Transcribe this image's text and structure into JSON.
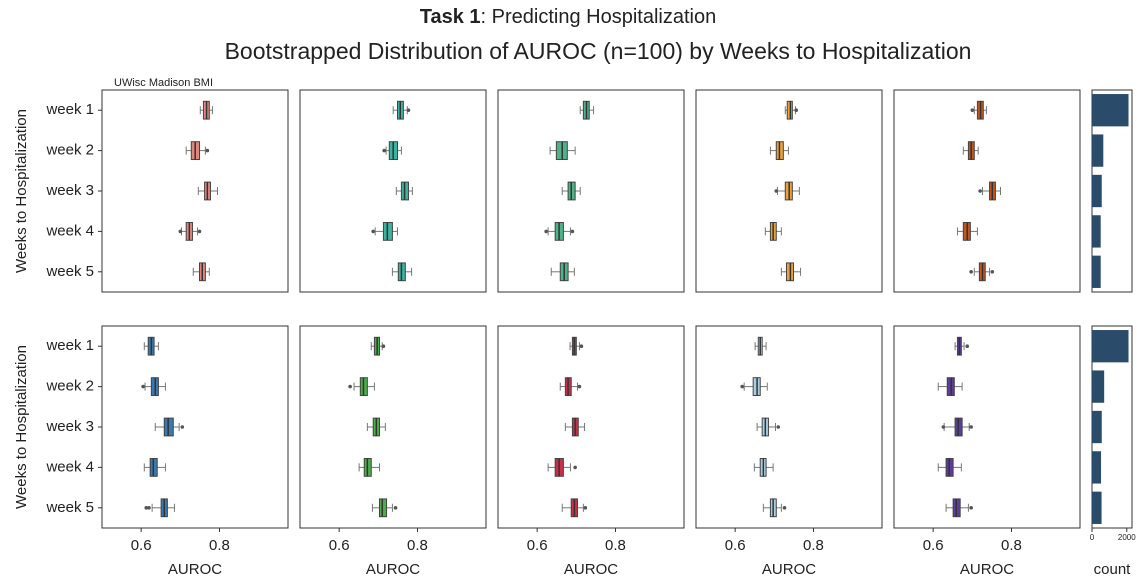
{
  "title": [
    "Task 1",
    ": Predicting Hospitalization"
  ],
  "subtitle": "Bootstrapped Distribution of AUROC (n=100) by Weeks to Hospitalization",
  "chart_data": [
    {
      "type": "box",
      "annotation": "UWisc Madison BMI",
      "ylabel": "Weeks to Hospitalization",
      "categories": [
        "week 1",
        "week 2",
        "week 3",
        "week 4",
        "week 5"
      ],
      "xlim": [
        0.5,
        0.975
      ],
      "color": "#e2857d",
      "boxes": [
        {
          "whislo": 0.751,
          "q1": 0.759,
          "med": 0.767,
          "q3": 0.774,
          "whishi": 0.782
        },
        {
          "whislo": 0.715,
          "q1": 0.728,
          "med": 0.738,
          "q3": 0.749,
          "whishi": 0.764,
          "fliers": [
            0.769
          ]
        },
        {
          "whislo": 0.746,
          "q1": 0.762,
          "med": 0.769,
          "q3": 0.777,
          "whishi": 0.795
        },
        {
          "whislo": 0.703,
          "q1": 0.715,
          "med": 0.723,
          "q3": 0.731,
          "whishi": 0.744,
          "fliers": [
            0.7,
            0.749
          ]
        },
        {
          "whislo": 0.733,
          "q1": 0.749,
          "med": 0.756,
          "q3": 0.764,
          "whishi": 0.774
        }
      ]
    },
    {
      "type": "box",
      "categories": [
        null,
        null,
        null,
        null,
        null
      ],
      "xlim": [
        0.5,
        0.975
      ],
      "color": "#3cb3a0",
      "boxes": [
        {
          "whislo": 0.738,
          "q1": 0.749,
          "med": 0.756,
          "q3": 0.764,
          "whishi": 0.774,
          "fliers": [
            0.777
          ]
        },
        {
          "whislo": 0.72,
          "q1": 0.728,
          "med": 0.738,
          "q3": 0.749,
          "whishi": 0.759,
          "fliers": [
            0.715
          ]
        },
        {
          "whislo": 0.746,
          "q1": 0.759,
          "med": 0.767,
          "q3": 0.777,
          "whishi": 0.787
        },
        {
          "whislo": 0.692,
          "q1": 0.713,
          "med": 0.723,
          "q3": 0.736,
          "whishi": 0.749,
          "fliers": [
            0.687
          ]
        },
        {
          "whislo": 0.736,
          "q1": 0.751,
          "med": 0.759,
          "q3": 0.769,
          "whishi": 0.785
        }
      ]
    },
    {
      "type": "box",
      "categories": [
        null,
        null,
        null,
        null,
        null
      ],
      "xlim": [
        0.5,
        0.975
      ],
      "color": "#4db38a",
      "boxes": [
        {
          "whislo": 0.71,
          "q1": 0.718,
          "med": 0.726,
          "q3": 0.733,
          "whishi": 0.744
        },
        {
          "whislo": 0.633,
          "q1": 0.649,
          "med": 0.664,
          "q3": 0.677,
          "whishi": 0.697
        },
        {
          "whislo": 0.664,
          "q1": 0.679,
          "med": 0.687,
          "q3": 0.697,
          "whishi": 0.71
        },
        {
          "whislo": 0.628,
          "q1": 0.646,
          "med": 0.656,
          "q3": 0.667,
          "whishi": 0.685,
          "fliers": [
            0.623,
            0.69
          ]
        },
        {
          "whislo": 0.636,
          "q1": 0.659,
          "med": 0.669,
          "q3": 0.679,
          "whishi": 0.695
        }
      ]
    },
    {
      "type": "box",
      "categories": [
        null,
        null,
        null,
        null,
        null
      ],
      "xlim": [
        0.5,
        0.975
      ],
      "color": "#e9a23b",
      "boxes": [
        {
          "whislo": 0.728,
          "q1": 0.733,
          "med": 0.741,
          "q3": 0.746,
          "whishi": 0.754,
          "fliers": [
            0.756
          ]
        },
        {
          "whislo": 0.69,
          "q1": 0.705,
          "med": 0.713,
          "q3": 0.723,
          "whishi": 0.736
        },
        {
          "whislo": 0.708,
          "q1": 0.728,
          "med": 0.738,
          "q3": 0.746,
          "whishi": 0.764,
          "fliers": [
            0.705
          ]
        },
        {
          "whislo": 0.677,
          "q1": 0.69,
          "med": 0.697,
          "q3": 0.705,
          "whishi": 0.718
        },
        {
          "whislo": 0.718,
          "q1": 0.731,
          "med": 0.741,
          "q3": 0.749,
          "whishi": 0.767
        }
      ]
    },
    {
      "type": "box",
      "categories": [
        null,
        null,
        null,
        null,
        null
      ],
      "xlim": [
        0.5,
        0.975
      ],
      "color": "#c4561d",
      "boxes": [
        {
          "whislo": 0.705,
          "q1": 0.713,
          "med": 0.721,
          "q3": 0.728,
          "whishi": 0.736,
          "fliers": [
            0.7
          ]
        },
        {
          "whislo": 0.677,
          "q1": 0.69,
          "med": 0.697,
          "q3": 0.705,
          "whishi": 0.715
        },
        {
          "whislo": 0.726,
          "q1": 0.744,
          "med": 0.751,
          "q3": 0.759,
          "whishi": 0.772,
          "fliers": [
            0.72
          ]
        },
        {
          "whislo": 0.662,
          "q1": 0.677,
          "med": 0.687,
          "q3": 0.695,
          "whishi": 0.713
        },
        {
          "whislo": 0.705,
          "q1": 0.718,
          "med": 0.726,
          "q3": 0.733,
          "whishi": 0.744,
          "fliers": [
            0.697,
            0.751
          ]
        }
      ]
    },
    {
      "type": "bar",
      "categories": [
        null,
        null,
        null,
        null,
        null
      ],
      "xlim": [
        0,
        2300
      ],
      "color": "#2b4b6b",
      "values": [
        2100,
        650,
        560,
        500,
        500
      ]
    },
    {
      "type": "box",
      "ylabel": "Weeks to Hospitalization",
      "categories": [
        "week 1",
        "week 2",
        "week 3",
        "week 4",
        "week 5"
      ],
      "xlabel": "AUROC",
      "xlim": [
        0.5,
        0.975
      ],
      "xticks": [
        0.6,
        0.8
      ],
      "color": "#3a79b1",
      "boxes": [
        {
          "whislo": 0.608,
          "q1": 0.618,
          "med": 0.626,
          "q3": 0.633,
          "whishi": 0.644
        },
        {
          "whislo": 0.61,
          "q1": 0.626,
          "med": 0.636,
          "q3": 0.644,
          "whishi": 0.662,
          "fliers": [
            0.605
          ]
        },
        {
          "whislo": 0.636,
          "q1": 0.659,
          "med": 0.669,
          "q3": 0.682,
          "whishi": 0.697,
          "fliers": [
            0.705
          ]
        },
        {
          "whislo": 0.608,
          "q1": 0.623,
          "med": 0.631,
          "q3": 0.641,
          "whishi": 0.662
        },
        {
          "whislo": 0.628,
          "q1": 0.651,
          "med": 0.659,
          "q3": 0.667,
          "whishi": 0.685,
          "fliers": [
            0.613,
            0.62
          ]
        }
      ]
    },
    {
      "type": "box",
      "categories": [
        null,
        null,
        null,
        null,
        null
      ],
      "xlabel": "AUROC",
      "xlim": [
        0.5,
        0.975
      ],
      "xticks": [
        0.6,
        0.8
      ],
      "color": "#4aaf4a",
      "boxes": [
        {
          "whislo": 0.682,
          "q1": 0.69,
          "med": 0.697,
          "q3": 0.703,
          "whishi": 0.71,
          "fliers": [
            0.713
          ]
        },
        {
          "whislo": 0.638,
          "q1": 0.654,
          "med": 0.662,
          "q3": 0.672,
          "whishi": 0.69,
          "fliers": [
            0.628
          ]
        },
        {
          "whislo": 0.672,
          "q1": 0.687,
          "med": 0.695,
          "q3": 0.703,
          "whishi": 0.718
        },
        {
          "whislo": 0.651,
          "q1": 0.664,
          "med": 0.672,
          "q3": 0.682,
          "whishi": 0.703
        },
        {
          "whislo": 0.685,
          "q1": 0.703,
          "med": 0.71,
          "q3": 0.721,
          "whishi": 0.736,
          "fliers": [
            0.744
          ]
        }
      ]
    },
    {
      "type": "box",
      "categories": [
        null,
        null,
        null,
        null,
        null
      ],
      "xlabel": "AUROC",
      "xlim": [
        0.5,
        0.975
      ],
      "xticks": [
        0.6,
        0.8
      ],
      "color": "#cb2e48",
      "boxes": [
        {
          "whislo": 0.684,
          "q1": 0.69,
          "med": 0.695,
          "q3": 0.7,
          "whishi": 0.708,
          "fliers": [
            0.713
          ]
        },
        {
          "whislo": 0.659,
          "q1": 0.672,
          "med": 0.679,
          "q3": 0.687,
          "whishi": 0.703,
          "fliers": [
            0.708
          ]
        },
        {
          "whislo": 0.672,
          "q1": 0.69,
          "med": 0.697,
          "q3": 0.705,
          "whishi": 0.721
        },
        {
          "whislo": 0.628,
          "q1": 0.646,
          "med": 0.656,
          "q3": 0.667,
          "whishi": 0.685,
          "fliers": [
            0.697
          ]
        },
        {
          "whislo": 0.664,
          "q1": 0.687,
          "med": 0.695,
          "q3": 0.703,
          "whishi": 0.718,
          "fliers": [
            0.723
          ]
        }
      ]
    },
    {
      "type": "box",
      "categories": [
        null,
        null,
        null,
        null,
        null
      ],
      "xlabel": "AUROC",
      "xlim": [
        0.5,
        0.975
      ],
      "xticks": [
        0.6,
        0.8
      ],
      "color": "#a9cfe3",
      "boxes": [
        {
          "whislo": 0.651,
          "q1": 0.659,
          "med": 0.664,
          "q3": 0.669,
          "whishi": 0.679
        },
        {
          "whislo": 0.623,
          "q1": 0.646,
          "med": 0.656,
          "q3": 0.664,
          "whishi": 0.682,
          "fliers": [
            0.618
          ]
        },
        {
          "whislo": 0.656,
          "q1": 0.669,
          "med": 0.677,
          "q3": 0.685,
          "whishi": 0.703,
          "fliers": [
            0.71
          ]
        },
        {
          "whislo": 0.649,
          "q1": 0.664,
          "med": 0.672,
          "q3": 0.679,
          "whishi": 0.697
        },
        {
          "whislo": 0.672,
          "q1": 0.69,
          "med": 0.697,
          "q3": 0.705,
          "whishi": 0.718,
          "fliers": [
            0.726
          ]
        }
      ]
    },
    {
      "type": "box",
      "categories": [
        null,
        null,
        null,
        null,
        null
      ],
      "xlabel": "AUROC",
      "xlim": [
        0.5,
        0.975
      ],
      "xticks": [
        0.6,
        0.8
      ],
      "color": "#5c3c9e",
      "boxes": [
        {
          "whislo": 0.656,
          "q1": 0.662,
          "med": 0.667,
          "q3": 0.672,
          "whishi": 0.679,
          "fliers": [
            0.687
          ]
        },
        {
          "whislo": 0.613,
          "q1": 0.636,
          "med": 0.646,
          "q3": 0.654,
          "whishi": 0.674
        },
        {
          "whislo": 0.628,
          "q1": 0.656,
          "med": 0.664,
          "q3": 0.674,
          "whishi": 0.692,
          "fliers": [
            0.626,
            0.697
          ]
        },
        {
          "whislo": 0.613,
          "q1": 0.633,
          "med": 0.641,
          "q3": 0.651,
          "whishi": 0.672
        },
        {
          "whislo": 0.633,
          "q1": 0.651,
          "med": 0.659,
          "q3": 0.669,
          "whishi": 0.69,
          "fliers": [
            0.697
          ]
        }
      ]
    },
    {
      "type": "bar",
      "categories": [
        null,
        null,
        null,
        null,
        null
      ],
      "xlabel": "count",
      "xlim": [
        0,
        2300
      ],
      "xticks": [
        0,
        2000
      ],
      "color": "#2b4b6b",
      "values": [
        2100,
        700,
        560,
        520,
        550
      ]
    }
  ]
}
